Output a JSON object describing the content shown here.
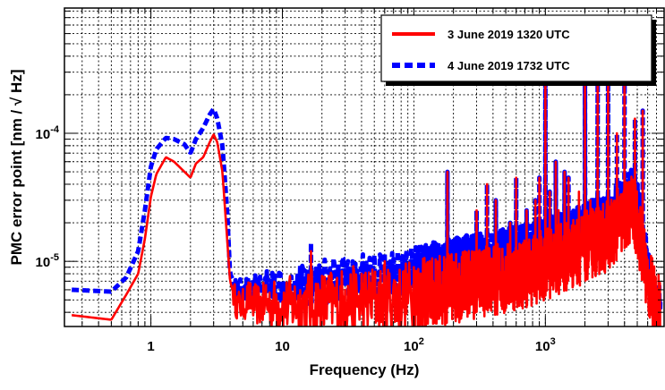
{
  "chart_data": {
    "type": "line",
    "xlabel": "Frequency (Hz)",
    "ylabel": "PMC error point [nm / √ Hz]",
    "xscale": "log",
    "yscale": "log",
    "xlim": [
      0.22,
      8000
    ],
    "ylim": [
      3.1e-06,
      0.00095
    ],
    "grid": true,
    "legend_position": "top-right",
    "x_ticks": [
      {
        "value": 1,
        "label": "1",
        "exp": ""
      },
      {
        "value": 10,
        "label": "10",
        "exp": ""
      },
      {
        "value": 100,
        "label": "10",
        "exp": "2"
      },
      {
        "value": 1000,
        "label": "10",
        "exp": "3"
      }
    ],
    "y_ticks": [
      {
        "value": 1e-05,
        "label": "10",
        "exp": "-5"
      },
      {
        "value": 0.0001,
        "label": "10",
        "exp": "-4"
      }
    ],
    "series": [
      {
        "name": "3 June 2019 1320 UTC",
        "color": "#ff0000",
        "style": "solid",
        "base": [
          [
            0.25,
            3.8e-06
          ],
          [
            0.5,
            3.5e-06
          ],
          [
            0.65,
            5.5e-06
          ],
          [
            0.8,
            8e-06
          ],
          [
            0.9,
            1.5e-05
          ],
          [
            1.0,
            3.2e-05
          ],
          [
            1.1,
            4.8e-05
          ],
          [
            1.3,
            6.5e-05
          ],
          [
            1.5,
            6e-05
          ],
          [
            1.8,
            5e-05
          ],
          [
            2.0,
            4.5e-05
          ],
          [
            2.2,
            5.8e-05
          ],
          [
            2.5,
            6.5e-05
          ],
          [
            2.8,
            8.5e-05
          ],
          [
            3.0,
            9.8e-05
          ],
          [
            3.2,
            8.5e-05
          ],
          [
            3.5,
            5e-05
          ],
          [
            3.8,
            1.5e-05
          ],
          [
            4.0,
            7e-06
          ],
          [
            4.5,
            4.6e-06
          ],
          [
            5,
            4.5e-06
          ],
          [
            5.5,
            5.2e-06
          ],
          [
            6,
            4.7e-06
          ],
          [
            7,
            4.5e-06
          ],
          [
            8,
            4.7e-06
          ],
          [
            10,
            4.5e-06
          ],
          [
            12,
            4.6e-06
          ],
          [
            16,
            4.6e-06
          ],
          [
            20,
            4.6e-06
          ],
          [
            30,
            4.8e-06
          ],
          [
            50,
            5e-06
          ],
          [
            80,
            5.3e-06
          ],
          [
            100,
            5.5e-06
          ],
          [
            150,
            5.8e-06
          ],
          [
            200,
            6.2e-06
          ],
          [
            300,
            6.8e-06
          ],
          [
            500,
            7.5e-06
          ],
          [
            800,
            8.5e-06
          ],
          [
            1000,
            9.5e-06
          ],
          [
            1500,
            1.1e-05
          ],
          [
            2000,
            1.3e-05
          ],
          [
            3000,
            1.6e-05
          ],
          [
            4000,
            2.2e-05
          ],
          [
            4500,
            2.6e-05
          ],
          [
            5000,
            2e-05
          ],
          [
            5500,
            1.2e-05
          ],
          [
            6000,
            7e-06
          ],
          [
            7000,
            4.5e-06
          ],
          [
            7500,
            4.2e-06
          ]
        ],
        "peaks": [
          [
            5.5,
            6e-06
          ],
          [
            7.5,
            6.5e-06
          ],
          [
            9,
            5.5e-06
          ],
          [
            16.5,
            1.2e-05
          ],
          [
            30,
            6e-06
          ],
          [
            40,
            8e-06
          ],
          [
            60,
            1e-05
          ],
          [
            100,
            9e-06
          ],
          [
            180,
            5e-05
          ],
          [
            300,
            2.5e-05
          ],
          [
            360,
            4e-05
          ],
          [
            420,
            3e-05
          ],
          [
            540,
            2e-05
          ],
          [
            600,
            4.5e-05
          ],
          [
            720,
            2.5e-05
          ],
          [
            840,
            3e-05
          ],
          [
            900,
            4.5e-05
          ],
          [
            1000,
            0.00065
          ],
          [
            1080,
            3.5e-05
          ],
          [
            1200,
            6e-05
          ],
          [
            1260,
            2.5e-05
          ],
          [
            1400,
            5e-05
          ],
          [
            1500,
            4.5e-05
          ],
          [
            1800,
            3.5e-05
          ],
          [
            2000,
            0.0006
          ],
          [
            2200,
            3e-05
          ],
          [
            2500,
            0.00025
          ],
          [
            3000,
            0.00055
          ],
          [
            3500,
            0.0001
          ],
          [
            4000,
            0.0007
          ],
          [
            4800,
            0.00013
          ],
          [
            5500,
            0.00015
          ]
        ],
        "noise": 0.28
      },
      {
        "name": "4 June 2019 1732 UTC",
        "color": "#0000ff",
        "style": "dashed",
        "base": [
          [
            0.25,
            6e-06
          ],
          [
            0.5,
            5.8e-06
          ],
          [
            0.65,
            7.5e-06
          ],
          [
            0.8,
            1.2e-05
          ],
          [
            0.9,
            2.5e-05
          ],
          [
            1.0,
            5.5e-05
          ],
          [
            1.1,
            7.5e-05
          ],
          [
            1.3,
            9.2e-05
          ],
          [
            1.5,
            9e-05
          ],
          [
            1.8,
            8.2e-05
          ],
          [
            2.0,
            7e-05
          ],
          [
            2.2,
            9e-05
          ],
          [
            2.5,
            0.00011
          ],
          [
            2.8,
            0.00014
          ],
          [
            3.0,
            0.000155
          ],
          [
            3.2,
            0.00013
          ],
          [
            3.5,
            8e-05
          ],
          [
            3.8,
            2.5e-05
          ],
          [
            4.0,
            8e-06
          ],
          [
            4.5,
            6.2e-06
          ],
          [
            5,
            6e-06
          ],
          [
            6,
            6.3e-06
          ],
          [
            8,
            6.5e-06
          ],
          [
            10,
            6.5e-06
          ],
          [
            16,
            6.8e-06
          ],
          [
            20,
            7e-06
          ],
          [
            30,
            7.3e-06
          ],
          [
            50,
            7.6e-06
          ],
          [
            80,
            8.2e-06
          ],
          [
            100,
            8.5e-06
          ],
          [
            150,
            9.5e-06
          ],
          [
            200,
            1e-05
          ],
          [
            300,
            1.1e-05
          ],
          [
            500,
            1.2e-05
          ],
          [
            800,
            1.4e-05
          ],
          [
            1000,
            1.5e-05
          ],
          [
            1500,
            1.7e-05
          ],
          [
            2000,
            1.9e-05
          ],
          [
            3000,
            2.3e-05
          ],
          [
            4000,
            3e-05
          ],
          [
            4500,
            3.5e-05
          ],
          [
            5000,
            2.8e-05
          ],
          [
            5500,
            1.6e-05
          ],
          [
            6000,
            8e-06
          ],
          [
            7000,
            4.5e-06
          ],
          [
            7500,
            4.2e-06
          ]
        ],
        "peaks": [
          [
            16.5,
            1.4e-05
          ],
          [
            180,
            5e-05
          ],
          [
            300,
            2.5e-05
          ],
          [
            360,
            4e-05
          ],
          [
            420,
            3e-05
          ],
          [
            540,
            2e-05
          ],
          [
            600,
            4.5e-05
          ],
          [
            720,
            2.5e-05
          ],
          [
            840,
            3e-05
          ],
          [
            900,
            4.5e-05
          ],
          [
            1000,
            0.00065
          ],
          [
            1080,
            3.5e-05
          ],
          [
            1200,
            6e-05
          ],
          [
            1260,
            2.5e-05
          ],
          [
            1400,
            5e-05
          ],
          [
            1500,
            4.5e-05
          ],
          [
            2000,
            0.0006
          ],
          [
            2500,
            0.00025
          ],
          [
            3000,
            0.00055
          ],
          [
            3500,
            0.0001
          ],
          [
            4000,
            0.0007
          ],
          [
            4800,
            0.00013
          ],
          [
            5500,
            0.00015
          ]
        ],
        "noise": 0.18
      }
    ]
  }
}
